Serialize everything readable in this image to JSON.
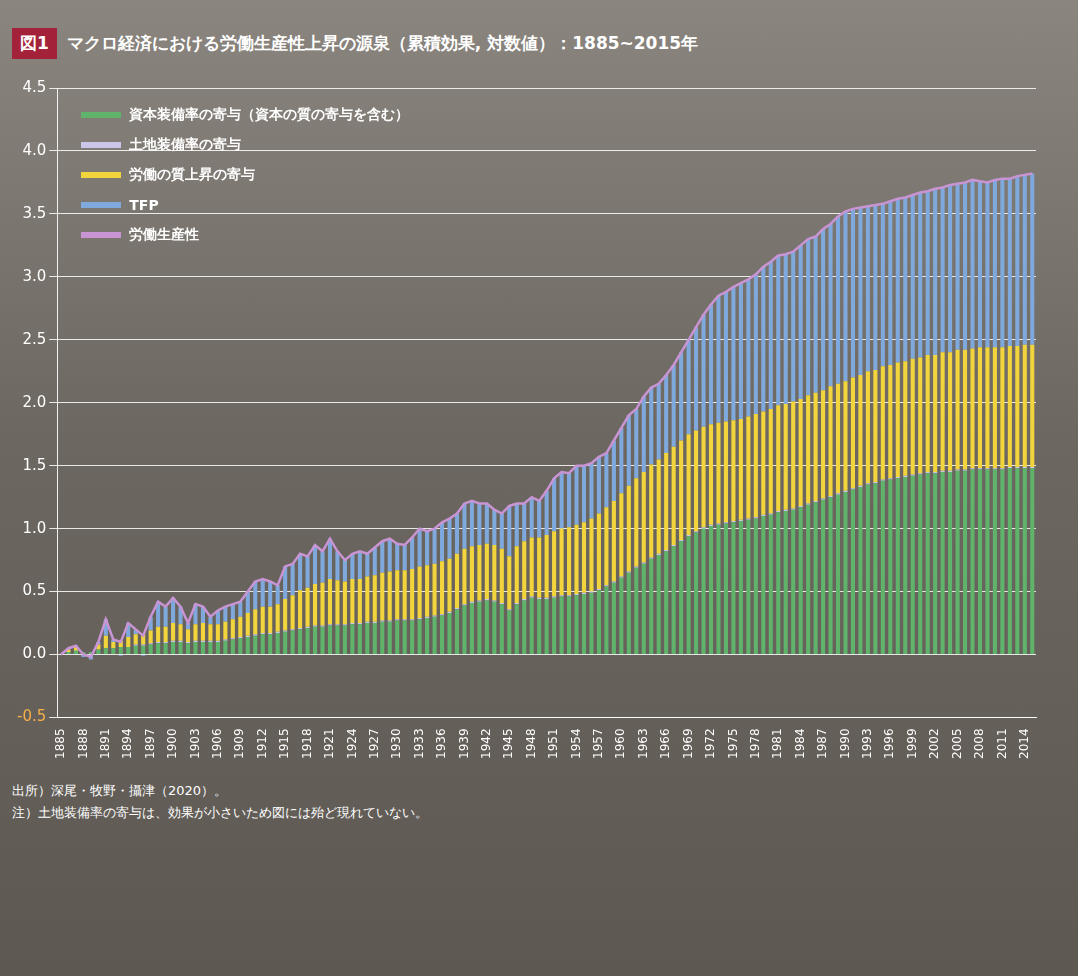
{
  "chart_data": {
    "type": "bar",
    "figure_label": "図1",
    "title": "マクロ経済における労働生産性上昇の源泉（累積効果, 対数値）：1885~2015年",
    "categories": [
      "1885",
      null,
      null,
      "1888",
      null,
      null,
      "1891",
      null,
      null,
      "1894",
      null,
      null,
      "1897",
      null,
      null,
      "1900",
      null,
      null,
      "1903",
      null,
      null,
      "1906",
      null,
      null,
      "1909",
      null,
      null,
      "1912",
      null,
      null,
      "1915",
      null,
      null,
      "1918",
      null,
      null,
      "1921",
      null,
      null,
      "1924",
      null,
      null,
      "1927",
      null,
      null,
      "1930",
      null,
      null,
      "1933",
      null,
      null,
      "1936",
      null,
      null,
      "1939",
      null,
      null,
      "1942",
      null,
      null,
      "1945",
      null,
      null,
      "1948",
      null,
      null,
      "1951",
      null,
      null,
      "1954",
      null,
      null,
      "1957",
      null,
      null,
      "1960",
      null,
      null,
      "1963",
      null,
      null,
      "1966",
      null,
      null,
      "1969",
      null,
      null,
      "1972",
      null,
      null,
      "1975",
      null,
      null,
      "1978",
      null,
      null,
      "1981",
      null,
      null,
      "1984",
      null,
      null,
      "1987",
      null,
      null,
      "1990",
      null,
      null,
      "1993",
      null,
      null,
      "1996",
      null,
      null,
      "1999",
      null,
      null,
      "2002",
      null,
      null,
      "2005",
      null,
      null,
      "2008",
      null,
      null,
      "2011",
      null,
      null,
      "2014",
      null
    ],
    "series": [
      {
        "name": "資本装備率の寄与（資本の質の寄与を含む）",
        "color": "#5fb36b",
        "values": [
          0,
          0.02,
          0.03,
          0.02,
          0.02,
          0.04,
          0.05,
          0.05,
          0.06,
          0.06,
          0.07,
          0.07,
          0.08,
          0.09,
          0.09,
          0.1,
          0.1,
          0.09,
          0.1,
          0.1,
          0.1,
          0.1,
          0.11,
          0.12,
          0.13,
          0.14,
          0.15,
          0.16,
          0.16,
          0.17,
          0.18,
          0.19,
          0.2,
          0.21,
          0.22,
          0.22,
          0.23,
          0.23,
          0.23,
          0.24,
          0.24,
          0.25,
          0.25,
          0.26,
          0.26,
          0.27,
          0.27,
          0.27,
          0.28,
          0.29,
          0.3,
          0.31,
          0.33,
          0.36,
          0.39,
          0.41,
          0.42,
          0.43,
          0.42,
          0.4,
          0.35,
          0.4,
          0.43,
          0.45,
          0.44,
          0.44,
          0.45,
          0.46,
          0.46,
          0.47,
          0.48,
          0.49,
          0.51,
          0.54,
          0.57,
          0.61,
          0.65,
          0.69,
          0.72,
          0.76,
          0.79,
          0.82,
          0.86,
          0.9,
          0.94,
          0.97,
          1.0,
          1.02,
          1.03,
          1.04,
          1.05,
          1.06,
          1.07,
          1.08,
          1.1,
          1.11,
          1.13,
          1.14,
          1.15,
          1.17,
          1.19,
          1.21,
          1.23,
          1.25,
          1.27,
          1.29,
          1.31,
          1.33,
          1.35,
          1.36,
          1.38,
          1.39,
          1.4,
          1.41,
          1.42,
          1.43,
          1.44,
          1.44,
          1.45,
          1.45,
          1.46,
          1.46,
          1.47,
          1.47,
          1.47,
          1.47,
          1.47,
          1.48,
          1.48,
          1.48,
          1.48
        ]
      },
      {
        "name": "土地装備率の寄与",
        "color": "#c9c6ea",
        "values": [
          0,
          0,
          0,
          0,
          0,
          0,
          0,
          0,
          0,
          0,
          0.01,
          0.01,
          0.01,
          0.01,
          0.01,
          0.01,
          0.01,
          0.01,
          0.01,
          0.01,
          0.01,
          0.01,
          0.01,
          0.01,
          0.01,
          0.01,
          0.01,
          0.01,
          0.01,
          0.01,
          0.01,
          0.01,
          0.01,
          0.01,
          0.01,
          0.01,
          0.01,
          0.01,
          0.01,
          0.01,
          0.01,
          0.01,
          0.01,
          0.01,
          0.01,
          0.01,
          0.01,
          0.01,
          0.01,
          0.01,
          0.01,
          0.01,
          0.01,
          0.01,
          0.01,
          0.01,
          0.01,
          0.01,
          0.01,
          0.01,
          0.01,
          0.01,
          0.01,
          0.01,
          0.01,
          0.01,
          0.01,
          0.01,
          0.01,
          0.01,
          0.01,
          0.01,
          0.01,
          0.01,
          0.01,
          0.01,
          0.01,
          0.01,
          0.01,
          0.01,
          0.01,
          0.01,
          0.01,
          0.01,
          0.01,
          0.01,
          0.01,
          0.01,
          0.01,
          0.01,
          0.01,
          0.01,
          0.01,
          0.01,
          0.01,
          0.01,
          0.01,
          0.01,
          0.01,
          0.01,
          0.01,
          0.01,
          0.01,
          0.01,
          0.01,
          0.01,
          0.01,
          0.01,
          0.01,
          0.01,
          0.01,
          0.01,
          0.01,
          0.01,
          0.01,
          0.01,
          0.01,
          0.01,
          0.01,
          0.01,
          0.01,
          0.01,
          0.01,
          0.01,
          0.01,
          0.01,
          0.01,
          0.01,
          0.01,
          0.01,
          0.01
        ]
      },
      {
        "name": "労働の質上昇の寄与",
        "color": "#f2d43c",
        "values": [
          0,
          0.02,
          0.03,
          0,
          0,
          0.04,
          0.1,
          0.05,
          0.05,
          0.08,
          0.08,
          0.08,
          0.1,
          0.12,
          0.12,
          0.14,
          0.13,
          0.1,
          0.13,
          0.14,
          0.13,
          0.13,
          0.14,
          0.15,
          0.16,
          0.18,
          0.2,
          0.21,
          0.21,
          0.22,
          0.25,
          0.27,
          0.3,
          0.31,
          0.33,
          0.34,
          0.36,
          0.35,
          0.34,
          0.35,
          0.35,
          0.36,
          0.37,
          0.38,
          0.39,
          0.39,
          0.39,
          0.4,
          0.41,
          0.41,
          0.41,
          0.42,
          0.42,
          0.43,
          0.44,
          0.44,
          0.44,
          0.44,
          0.44,
          0.43,
          0.42,
          0.45,
          0.46,
          0.47,
          0.48,
          0.5,
          0.52,
          0.53,
          0.54,
          0.55,
          0.56,
          0.58,
          0.6,
          0.62,
          0.64,
          0.66,
          0.68,
          0.7,
          0.72,
          0.74,
          0.75,
          0.77,
          0.78,
          0.79,
          0.8,
          0.8,
          0.8,
          0.8,
          0.8,
          0.8,
          0.8,
          0.8,
          0.81,
          0.82,
          0.82,
          0.83,
          0.84,
          0.84,
          0.85,
          0.85,
          0.86,
          0.86,
          0.86,
          0.87,
          0.87,
          0.87,
          0.88,
          0.88,
          0.89,
          0.89,
          0.9,
          0.9,
          0.91,
          0.91,
          0.92,
          0.92,
          0.93,
          0.93,
          0.94,
          0.94,
          0.95,
          0.95,
          0.95,
          0.96,
          0.96,
          0.96,
          0.96,
          0.96,
          0.96,
          0.97,
          0.97
        ]
      },
      {
        "name": "TFP",
        "color": "#7fa9dc",
        "values": [
          0,
          0.01,
          0.01,
          -0.02,
          -0.04,
          0.02,
          0.13,
          0.02,
          -0.01,
          0.11,
          0.04,
          -0.01,
          0.11,
          0.2,
          0.16,
          0.2,
          0.14,
          0.05,
          0.16,
          0.13,
          0.06,
          0.11,
          0.12,
          0.12,
          0.12,
          0.17,
          0.22,
          0.22,
          0.2,
          0.15,
          0.26,
          0.25,
          0.29,
          0.25,
          0.31,
          0.25,
          0.32,
          0.23,
          0.17,
          0.2,
          0.22,
          0.18,
          0.22,
          0.25,
          0.26,
          0.21,
          0.2,
          0.25,
          0.3,
          0.27,
          0.28,
          0.31,
          0.32,
          0.32,
          0.36,
          0.36,
          0.33,
          0.32,
          0.28,
          0.28,
          0.4,
          0.34,
          0.3,
          0.32,
          0.29,
          0.35,
          0.42,
          0.45,
          0.43,
          0.47,
          0.45,
          0.44,
          0.45,
          0.43,
          0.48,
          0.52,
          0.56,
          0.55,
          0.6,
          0.61,
          0.6,
          0.62,
          0.65,
          0.7,
          0.75,
          0.82,
          0.89,
          0.95,
          1.01,
          1.03,
          1.06,
          1.08,
          1.09,
          1.11,
          1.15,
          1.17,
          1.19,
          1.19,
          1.19,
          1.22,
          1.24,
          1.24,
          1.28,
          1.29,
          1.33,
          1.35,
          1.34,
          1.33,
          1.31,
          1.31,
          1.29,
          1.3,
          1.3,
          1.3,
          1.3,
          1.31,
          1.3,
          1.32,
          1.31,
          1.33,
          1.32,
          1.33,
          1.34,
          1.32,
          1.31,
          1.33,
          1.34,
          1.33,
          1.35,
          1.35,
          1.36
        ]
      },
      {
        "name": "労働生産性",
        "color": "#c994d4",
        "type": "line",
        "values": [
          0,
          0.05,
          0.07,
          0,
          -0.02,
          0.1,
          0.28,
          0.12,
          0.1,
          0.25,
          0.2,
          0.15,
          0.3,
          0.42,
          0.38,
          0.45,
          0.38,
          0.25,
          0.4,
          0.38,
          0.3,
          0.35,
          0.38,
          0.4,
          0.42,
          0.5,
          0.58,
          0.6,
          0.58,
          0.55,
          0.7,
          0.72,
          0.8,
          0.78,
          0.87,
          0.82,
          0.92,
          0.82,
          0.75,
          0.8,
          0.82,
          0.8,
          0.85,
          0.9,
          0.92,
          0.88,
          0.87,
          0.93,
          1.0,
          0.98,
          1.0,
          1.05,
          1.08,
          1.12,
          1.2,
          1.22,
          1.2,
          1.2,
          1.15,
          1.12,
          1.18,
          1.2,
          1.2,
          1.25,
          1.22,
          1.3,
          1.4,
          1.45,
          1.44,
          1.5,
          1.5,
          1.52,
          1.57,
          1.6,
          1.7,
          1.8,
          1.9,
          1.95,
          2.05,
          2.12,
          2.15,
          2.22,
          2.3,
          2.4,
          2.5,
          2.6,
          2.7,
          2.78,
          2.85,
          2.88,
          2.92,
          2.95,
          2.98,
          3.02,
          3.08,
          3.12,
          3.17,
          3.18,
          3.2,
          3.25,
          3.3,
          3.32,
          3.38,
          3.42,
          3.48,
          3.52,
          3.54,
          3.55,
          3.56,
          3.57,
          3.58,
          3.6,
          3.62,
          3.63,
          3.65,
          3.67,
          3.68,
          3.7,
          3.71,
          3.73,
          3.74,
          3.75,
          3.77,
          3.76,
          3.75,
          3.77,
          3.78,
          3.78,
          3.8,
          3.81,
          3.82
        ]
      }
    ],
    "ylim": [
      -0.5,
      4.5
    ],
    "yticks": [
      -0.5,
      {
        "value": 0,
        "label": "0.0"
      },
      0.5,
      {
        "value": 1,
        "label": "1.0"
      },
      1.5,
      {
        "value": 2,
        "label": "2.0"
      },
      2.5,
      {
        "value": 3,
        "label": "3.0"
      },
      3.5,
      {
        "value": 4,
        "label": "4.0"
      },
      4.5
    ],
    "grid": true,
    "stacked": true,
    "legend": "upper left",
    "annotations": [
      "出所）深尾・牧野・攝津（2020）。",
      "注）土地装備率の寄与は、効果が小さいため図には殆ど現れていない。"
    ]
  }
}
